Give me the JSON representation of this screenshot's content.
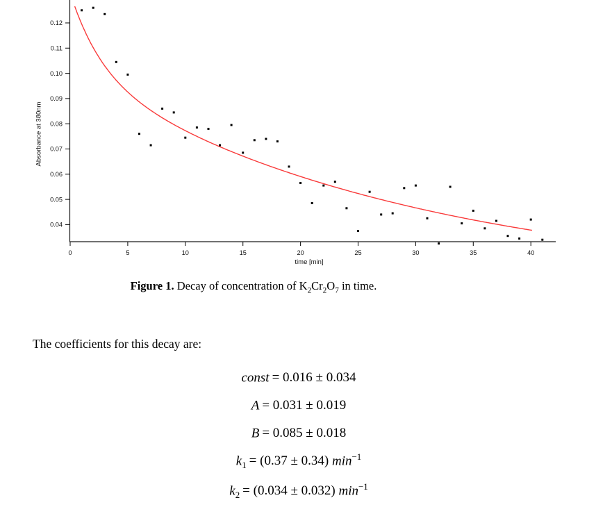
{
  "figure": {
    "y_axis_label": "Absorbance at 380nm",
    "x_axis_label": "time [min]"
  },
  "chart_data": {
    "type": "scatter",
    "title": "",
    "xlabel": "time [min]",
    "ylabel": "Absorbance at 380nm",
    "xlim": [
      0,
      41.5
    ],
    "ylim": [
      0.033,
      0.129
    ],
    "grid": false,
    "axis_color": "#1a1a1a",
    "point_color": "#000000",
    "xticks": [
      0,
      5,
      10,
      15,
      20,
      25,
      30,
      35,
      40
    ],
    "yticks": [
      "0.04",
      "0.05",
      "0.06",
      "0.07",
      "0.08",
      "0.09",
      "0.10",
      "0.11",
      "0.12"
    ],
    "points": {
      "x": [
        1,
        2,
        3,
        4,
        5,
        6,
        7,
        8,
        9,
        10,
        11,
        12,
        13,
        14,
        15,
        16,
        17,
        18,
        19,
        20,
        21,
        22,
        23,
        24,
        25,
        26,
        27,
        28,
        29,
        30,
        31,
        32,
        33,
        34,
        35,
        36,
        37,
        38,
        39,
        40,
        41
      ],
      "y": [
        0.125,
        0.126,
        0.1235,
        0.1045,
        0.0995,
        0.076,
        0.0715,
        0.086,
        0.0845,
        0.0745,
        0.0785,
        0.078,
        0.0715,
        0.0795,
        0.0685,
        0.0735,
        0.074,
        0.073,
        0.063,
        0.0565,
        0.0485,
        0.0555,
        0.057,
        0.0465,
        0.0375,
        0.053,
        0.044,
        0.0445,
        0.0545,
        0.0555,
        0.0425,
        0.0325,
        0.055,
        0.0405,
        0.0455,
        0.0385,
        0.0415,
        0.0355,
        0.0345,
        0.042,
        0.034
      ]
    },
    "fit_curve": {
      "model": "const + A*exp(-k1*t) + B*exp(-k2*t)",
      "const": 0.016,
      "A": 0.031,
      "B": 0.085,
      "k1": 0.37,
      "k2": 0.034,
      "t_range": [
        0,
        40.2
      ],
      "color": "#f93b3b"
    },
    "legend": null
  },
  "caption": {
    "bold": "Figure 1.",
    "pre": " Decay of concentration of K",
    "sub1": "2",
    "mid1": "Cr",
    "sub2": "2",
    "mid2": "O",
    "sub3": "7",
    "post": " in time."
  },
  "paragraph": "The coefficients for this decay are:",
  "equations": [
    {
      "lhs": "const",
      "sub": "",
      "val": "= 0.016 ± 0.034",
      "unit": "",
      "sup": ""
    },
    {
      "lhs": "A",
      "sub": "",
      "val": "= 0.031 ± 0.019",
      "unit": "",
      "sup": ""
    },
    {
      "lhs": "B",
      "sub": "",
      "val": "= 0.085 ± 0.018",
      "unit": "",
      "sup": ""
    },
    {
      "lhs": "k",
      "sub": "1",
      "val": "= (0.37 ± 0.34) ",
      "unit": "min",
      "sup": "−1"
    },
    {
      "lhs": "k",
      "sub": "2",
      "val": "= (0.034 ± 0.032) ",
      "unit": "min",
      "sup": "−1"
    }
  ]
}
